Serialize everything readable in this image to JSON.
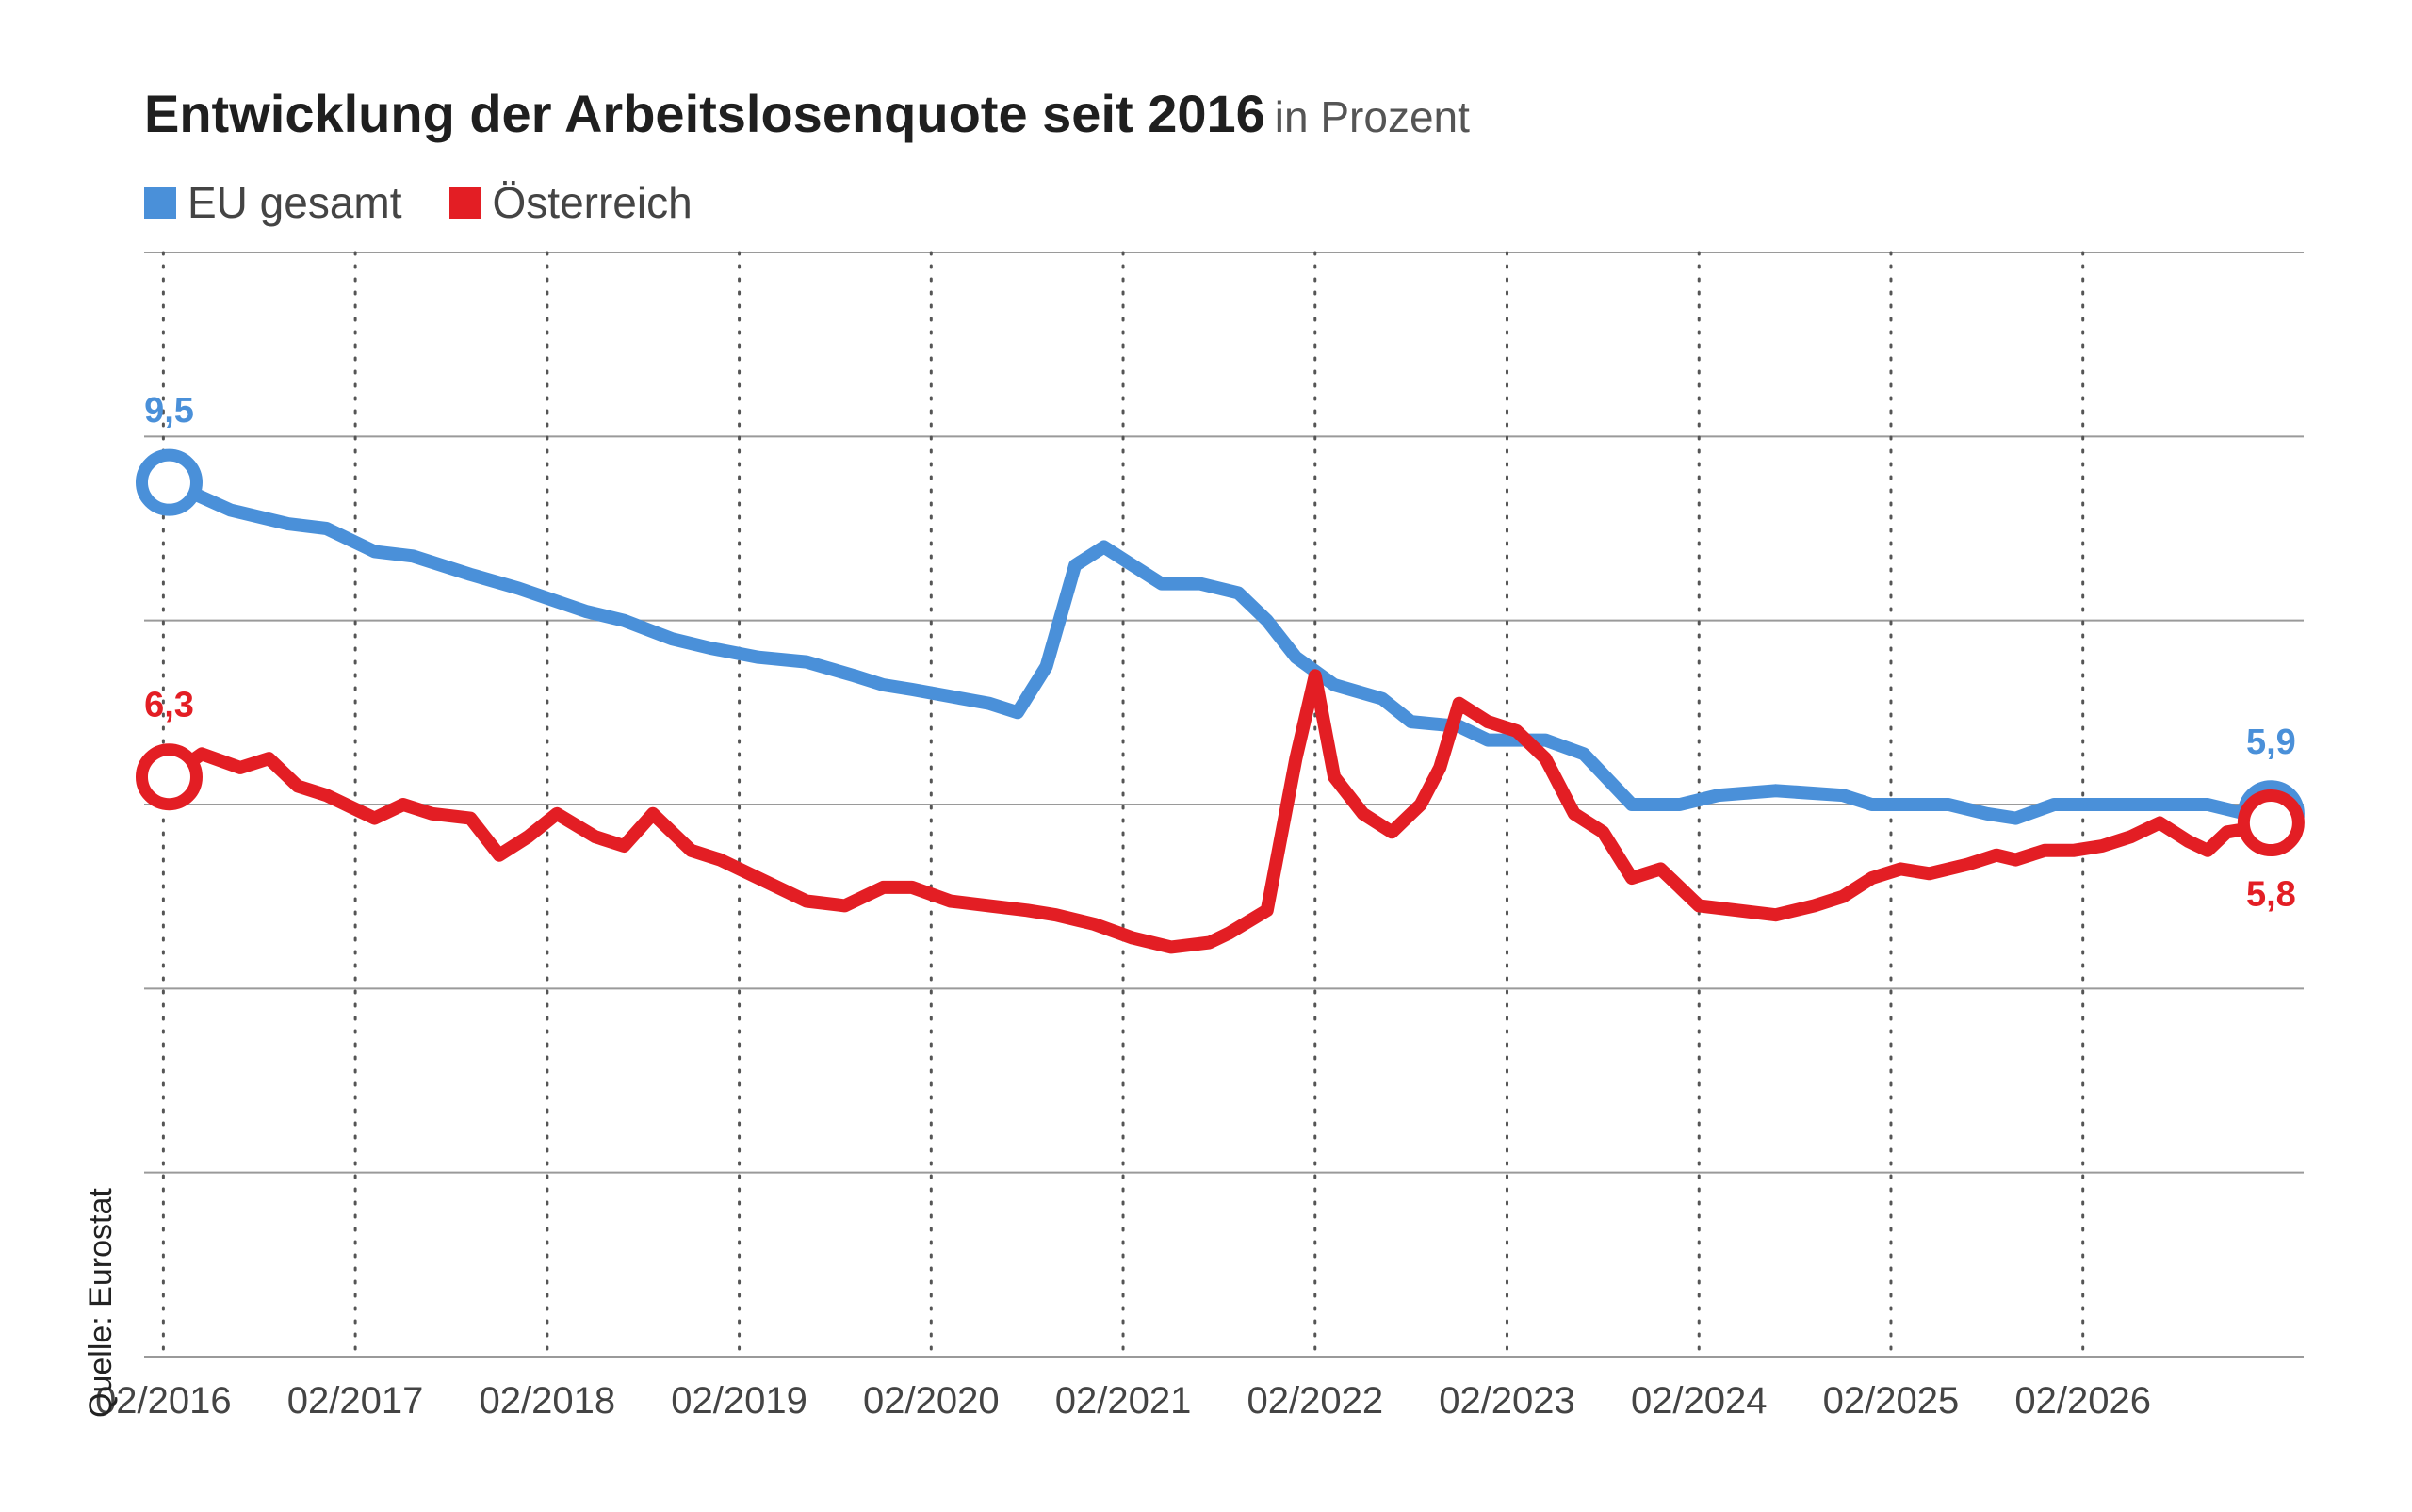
{
  "title": "Entwicklung der Arbeitslosenquote seit 2016",
  "subtitle": "in Prozent",
  "source": "Quelle: Eurostat",
  "colors": {
    "eu": "#4a90d9",
    "at": "#e31e24",
    "grid": "#9a9a9a"
  },
  "chart_data": {
    "type": "line",
    "title": "Entwicklung der Arbeitslosenquote seit 2016 in Prozent",
    "xlabel": "",
    "ylabel": "",
    "ylim": [
      0,
      12
    ],
    "grid": true,
    "legend_position": "top-left",
    "x_ticks": [
      "02/2016",
      "02/2017",
      "02/2018",
      "02/2019",
      "02/2020",
      "02/2021",
      "02/2022",
      "02/2023",
      "02/2024",
      "02/2025",
      "02/2026"
    ],
    "series": [
      {
        "name": "EU gesamt",
        "color": "#4a90d9",
        "start_label": "9,5",
        "end_label": "5,9",
        "points": [
          [
            2016.13,
            9.5
          ],
          [
            2016.45,
            9.2
          ],
          [
            2016.75,
            9.05
          ],
          [
            2016.95,
            9.0
          ],
          [
            2017.2,
            8.75
          ],
          [
            2017.4,
            8.7
          ],
          [
            2017.7,
            8.5
          ],
          [
            2017.95,
            8.35
          ],
          [
            2018.3,
            8.1
          ],
          [
            2018.5,
            8.0
          ],
          [
            2018.75,
            7.8
          ],
          [
            2018.95,
            7.7
          ],
          [
            2019.2,
            7.6
          ],
          [
            2019.45,
            7.55
          ],
          [
            2019.7,
            7.4
          ],
          [
            2019.85,
            7.3
          ],
          [
            2020.0,
            7.25
          ],
          [
            2020.4,
            7.1
          ],
          [
            2020.55,
            7.0
          ],
          [
            2020.7,
            7.5
          ],
          [
            2020.85,
            8.6
          ],
          [
            2021.0,
            8.8
          ],
          [
            2021.15,
            8.6
          ],
          [
            2021.3,
            8.4
          ],
          [
            2021.5,
            8.4
          ],
          [
            2021.7,
            8.3
          ],
          [
            2021.85,
            8.0
          ],
          [
            2022.0,
            7.6
          ],
          [
            2022.2,
            7.3
          ],
          [
            2022.45,
            7.15
          ],
          [
            2022.6,
            6.9
          ],
          [
            2022.85,
            6.85
          ],
          [
            2023.0,
            6.7
          ],
          [
            2023.3,
            6.7
          ],
          [
            2023.5,
            6.55
          ],
          [
            2023.75,
            6.0
          ],
          [
            2024.0,
            6.0
          ],
          [
            2024.2,
            6.1
          ],
          [
            2024.5,
            6.15
          ],
          [
            2024.85,
            6.1
          ],
          [
            2025.0,
            6.0
          ],
          [
            2025.4,
            6.0
          ],
          [
            2025.6,
            5.9
          ],
          [
            2025.75,
            5.85
          ],
          [
            2025.95,
            6.0
          ],
          [
            2026.2,
            6.0
          ],
          [
            2026.5,
            6.0
          ],
          [
            2026.75,
            6.0
          ],
          [
            2026.95,
            5.9
          ],
          [
            2027.08,
            5.9
          ]
        ]
      },
      {
        "name": "Österreich",
        "color": "#e31e24",
        "start_label": "6,3",
        "end_label": "5,8",
        "points": [
          [
            2016.13,
            6.3
          ],
          [
            2016.3,
            6.55
          ],
          [
            2016.5,
            6.4
          ],
          [
            2016.65,
            6.5
          ],
          [
            2016.8,
            6.2
          ],
          [
            2016.95,
            6.1
          ],
          [
            2017.2,
            5.85
          ],
          [
            2017.35,
            6.0
          ],
          [
            2017.5,
            5.9
          ],
          [
            2017.7,
            5.85
          ],
          [
            2017.85,
            5.45
          ],
          [
            2018.0,
            5.65
          ],
          [
            2018.15,
            5.9
          ],
          [
            2018.35,
            5.65
          ],
          [
            2018.5,
            5.55
          ],
          [
            2018.65,
            5.9
          ],
          [
            2018.85,
            5.5
          ],
          [
            2019.0,
            5.4
          ],
          [
            2019.2,
            5.2
          ],
          [
            2019.45,
            4.95
          ],
          [
            2019.65,
            4.9
          ],
          [
            2019.85,
            5.1
          ],
          [
            2020.0,
            5.1
          ],
          [
            2020.2,
            4.95
          ],
          [
            2020.4,
            4.9
          ],
          [
            2020.6,
            4.85
          ],
          [
            2020.75,
            4.8
          ],
          [
            2020.95,
            4.7
          ],
          [
            2021.15,
            4.55
          ],
          [
            2021.35,
            4.45
          ],
          [
            2021.55,
            4.5
          ],
          [
            2021.65,
            4.6
          ],
          [
            2021.85,
            4.85
          ],
          [
            2022.0,
            6.5
          ],
          [
            2022.1,
            7.4
          ],
          [
            2022.2,
            6.3
          ],
          [
            2022.35,
            5.9
          ],
          [
            2022.5,
            5.7
          ],
          [
            2022.65,
            6.0
          ],
          [
            2022.75,
            6.4
          ],
          [
            2022.85,
            7.1
          ],
          [
            2023.0,
            6.9
          ],
          [
            2023.15,
            6.8
          ],
          [
            2023.3,
            6.5
          ],
          [
            2023.45,
            5.9
          ],
          [
            2023.6,
            5.7
          ],
          [
            2023.75,
            5.2
          ],
          [
            2023.9,
            5.3
          ],
          [
            2024.1,
            4.9
          ],
          [
            2024.3,
            4.85
          ],
          [
            2024.5,
            4.8
          ],
          [
            2024.7,
            4.9
          ],
          [
            2024.85,
            5.0
          ],
          [
            2025.0,
            5.2
          ],
          [
            2025.15,
            5.3
          ],
          [
            2025.3,
            5.25
          ],
          [
            2025.5,
            5.35
          ],
          [
            2025.65,
            5.45
          ],
          [
            2025.75,
            5.4
          ],
          [
            2025.9,
            5.5
          ],
          [
            2026.05,
            5.5
          ],
          [
            2026.2,
            5.55
          ],
          [
            2026.35,
            5.65
          ],
          [
            2026.5,
            5.8
          ],
          [
            2026.65,
            5.6
          ],
          [
            2026.75,
            5.5
          ],
          [
            2026.85,
            5.7
          ],
          [
            2027.0,
            5.75
          ],
          [
            2027.08,
            5.8
          ]
        ]
      }
    ]
  }
}
